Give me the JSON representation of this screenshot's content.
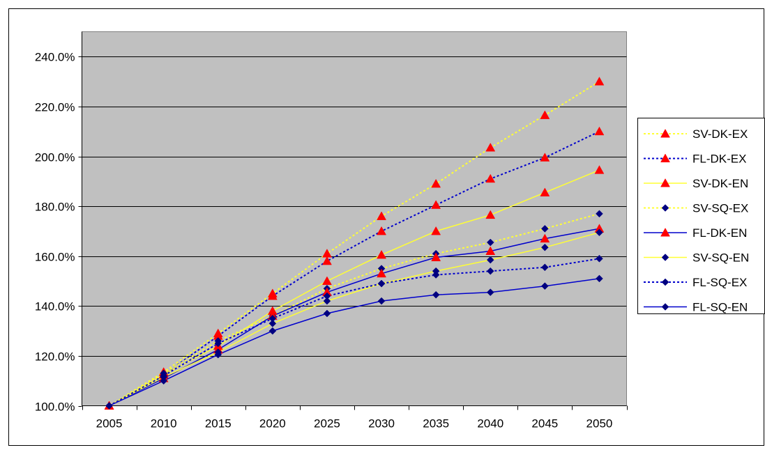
{
  "chart_data": {
    "type": "line",
    "title": "",
    "xlabel": "",
    "ylabel": "",
    "categories": [
      "2005",
      "2010",
      "2015",
      "2020",
      "2025",
      "2030",
      "2035",
      "2040",
      "2045",
      "2050"
    ],
    "y_ticks": [
      "100.0%",
      "120.0%",
      "140.0%",
      "160.0%",
      "180.0%",
      "200.0%",
      "220.0%",
      "240.0%"
    ],
    "ylim": [
      100,
      250
    ],
    "y_tick_step": 20,
    "grid": "horizontal",
    "plot_background": "#c0c0c0",
    "legend_position": "right",
    "series": [
      {
        "name": "SV-DK-EX",
        "line_color": "#ffff33",
        "line_style": "dotted",
        "marker": "triangle",
        "marker_color": "#ff0000",
        "values": [
          100.0,
          113.5,
          129.0,
          145.0,
          161.0,
          176.0,
          189.0,
          203.5,
          216.5,
          230.0
        ]
      },
      {
        "name": "FL-DK-EX",
        "line_color": "#0000cc",
        "line_style": "dotted",
        "marker": "triangle",
        "marker_color": "#ff0000",
        "values": [
          100.0,
          112.5,
          128.0,
          144.0,
          158.0,
          170.0,
          180.5,
          191.0,
          199.5,
          210.0
        ]
      },
      {
        "name": "SV-DK-EN",
        "line_color": "#ffff33",
        "line_style": "solid",
        "marker": "triangle",
        "marker_color": "#ff0000",
        "values": [
          100.0,
          112.5,
          124.0,
          138.0,
          150.0,
          160.5,
          170.0,
          176.5,
          185.5,
          194.5
        ]
      },
      {
        "name": "SV-SQ-EX",
        "line_color": "#ffff33",
        "line_style": "dotted",
        "marker": "diamond",
        "marker_color": "#000080",
        "values": [
          100.0,
          113.0,
          126.0,
          136.0,
          147.0,
          155.0,
          161.0,
          165.5,
          171.0,
          177.0
        ]
      },
      {
        "name": "FL-DK-EN",
        "line_color": "#0000cc",
        "line_style": "solid",
        "marker": "triangle",
        "marker_color": "#ff0000",
        "values": [
          100.0,
          111.0,
          122.5,
          136.0,
          145.5,
          153.0,
          159.5,
          162.0,
          167.0,
          171.0
        ]
      },
      {
        "name": "SV-SQ-EN",
        "line_color": "#ffff33",
        "line_style": "solid",
        "marker": "diamond",
        "marker_color": "#000080",
        "values": [
          100.0,
          111.5,
          121.5,
          133.0,
          142.0,
          149.0,
          154.0,
          158.5,
          163.5,
          169.5
        ]
      },
      {
        "name": "FL-SQ-EX",
        "line_color": "#0000cc",
        "line_style": "dotted",
        "marker": "diamond",
        "marker_color": "#000080",
        "values": [
          100.0,
          112.0,
          125.0,
          135.0,
          144.0,
          149.0,
          152.5,
          154.0,
          155.5,
          159.0
        ]
      },
      {
        "name": "FL-SQ-EN",
        "line_color": "#0000cc",
        "line_style": "solid",
        "marker": "diamond",
        "marker_color": "#000080",
        "values": [
          100.0,
          110.0,
          120.5,
          130.0,
          137.0,
          142.0,
          144.5,
          145.5,
          148.0,
          151.0
        ]
      }
    ]
  }
}
